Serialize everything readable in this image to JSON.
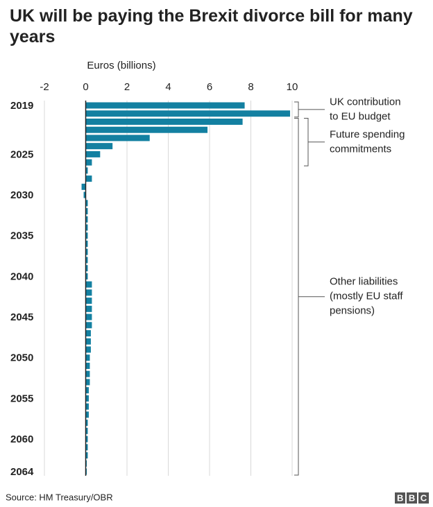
{
  "chart_data": {
    "type": "hbar",
    "title": "UK will be paying the Brexit divorce bill for many years",
    "x_label": "Euros (billions)",
    "source": "Source: HM Treasury/OBR",
    "logo": "BBC",
    "color": "#1380a1",
    "xlim": [
      -2,
      10
    ],
    "xticks": [
      -2,
      0,
      2,
      4,
      6,
      8,
      10
    ],
    "grid": true,
    "categories": [
      "2019",
      null,
      null,
      null,
      null,
      null,
      "2025",
      null,
      null,
      null,
      null,
      "2030",
      null,
      null,
      null,
      null,
      "2035",
      null,
      null,
      null,
      null,
      "2040",
      null,
      null,
      null,
      null,
      "2045",
      null,
      null,
      null,
      null,
      "2050",
      null,
      null,
      null,
      null,
      "2055",
      null,
      null,
      null,
      null,
      "2060",
      null,
      null,
      null,
      "2064"
    ],
    "values": [
      7.7,
      9.9,
      7.6,
      5.9,
      3.1,
      1.3,
      0.7,
      0.3,
      0.1,
      0.3,
      -0.2,
      -0.1,
      0.1,
      0.1,
      0.1,
      0.1,
      0.1,
      0.1,
      0.1,
      0.1,
      0.1,
      0.1,
      0.3,
      0.3,
      0.3,
      0.3,
      0.3,
      0.3,
      0.25,
      0.25,
      0.25,
      0.2,
      0.2,
      0.2,
      0.2,
      0.15,
      0.15,
      0.15,
      0.15,
      0.1,
      0.1,
      0.1,
      0.1,
      0.1,
      0.05,
      0.05
    ],
    "annotations": [
      {
        "lines": [
          "UK contribution",
          "to EU budget"
        ]
      },
      {
        "lines": [
          "Future spending",
          "commitments"
        ]
      },
      {
        "lines": [
          "Other liabilities",
          "(mostly EU staff",
          "pensions)"
        ]
      }
    ]
  }
}
